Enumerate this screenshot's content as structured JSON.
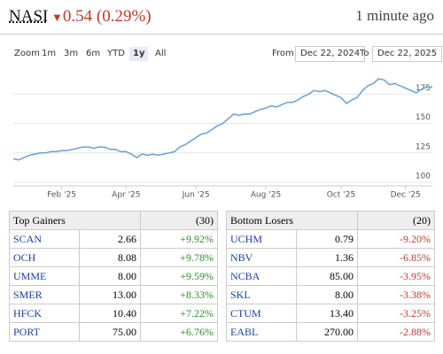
{
  "header": {
    "symbol": "NASI",
    "change": "0.54 (0.29%)",
    "updated": "1 minute ago"
  },
  "controls": {
    "zoom_label": "Zoom",
    "zoom_options": [
      "1m",
      "3m",
      "6m",
      "YTD",
      "1y",
      "All"
    ],
    "from_label": "From",
    "from_date": "Dec 22, 2024",
    "to_label": "To",
    "to_date": "Dec 22, 2025"
  },
  "chart_data": {
    "type": "line",
    "color": "#6a9fd4",
    "grid": true,
    "categories": [
      null,
      null,
      null,
      null,
      null,
      null,
      null,
      null,
      null,
      "Feb '25",
      null,
      null,
      null,
      null,
      null,
      null,
      null,
      null,
      null,
      null,
      null,
      "Apr '25",
      null,
      null,
      null,
      null,
      null,
      null,
      null,
      null,
      null,
      null,
      null,
      null,
      "Jun '25",
      null,
      null,
      null,
      null,
      null,
      null,
      null,
      null,
      null,
      null,
      null,
      null,
      "Aug '25",
      null,
      null,
      null,
      null,
      null,
      null,
      null,
      null,
      null,
      null,
      null,
      null,
      null,
      "Oct '25",
      null,
      null,
      null,
      null,
      null,
      null,
      null,
      null,
      null,
      null,
      null,
      "Dec '25",
      null,
      null,
      null,
      null,
      null
    ],
    "values": [
      120,
      119,
      121,
      123,
      124,
      125,
      125,
      126,
      126,
      127,
      127,
      128,
      129,
      130,
      130,
      129,
      130,
      130,
      128,
      128,
      126,
      126,
      124,
      121,
      124,
      123,
      124,
      123,
      124,
      125,
      126,
      130,
      132,
      135,
      138,
      141,
      142,
      145,
      148,
      150,
      154,
      158,
      157,
      158,
      158,
      160,
      162,
      163,
      165,
      164,
      166,
      168,
      168,
      170,
      173,
      175,
      178,
      177,
      178,
      176,
      174,
      172,
      167,
      170,
      172,
      178,
      182,
      184,
      188,
      187,
      183,
      184,
      182,
      180,
      178,
      176,
      179,
      181,
      181
    ],
    "ylim": [
      97,
      191
    ],
    "yticks": [
      100,
      125,
      150,
      175
    ]
  },
  "tables": [
    {
      "title": "Top Gainers",
      "count": "(30)",
      "rows": [
        [
          "SCAN",
          "2.66",
          "+9.92%"
        ],
        [
          "OCH",
          "8.08",
          "+9.78%"
        ],
        [
          "UMME",
          "8.00",
          "+9.59%"
        ],
        [
          "SMER",
          "13.00",
          "+8.33%"
        ],
        [
          "HFCK",
          "10.40",
          "+7.22%"
        ],
        [
          "PORT",
          "75.00",
          "+6.76%"
        ]
      ]
    },
    {
      "title": "Bottom Losers",
      "count": "(20)",
      "rows": [
        [
          "UCHM",
          "0.79",
          "-9.20%"
        ],
        [
          "NBV",
          "1.36",
          "-6.85%"
        ],
        [
          "NCBA",
          "85.00",
          "-3.95%"
        ],
        [
          "SKL",
          "8.00",
          "-3.38%"
        ],
        [
          "CTUM",
          "13.40",
          "-3.25%"
        ],
        [
          "EABL",
          "270.00",
          "-2.88%"
        ]
      ]
    }
  ]
}
